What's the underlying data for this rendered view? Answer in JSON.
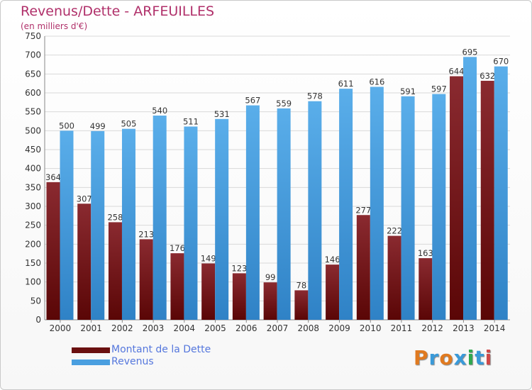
{
  "title": "Revenus/Dette - ARFEUILLES",
  "subtitle": "(en milliers d'€)",
  "colors": {
    "title": "#b0306a",
    "dette_top": "#8a2a30",
    "dette_bottom": "#5a0606",
    "revenus_top": "#5aaeea",
    "revenus_bottom": "#2f82c6",
    "legend_text": "#5577dd"
  },
  "legend": [
    {
      "label": "Montant de la Dette",
      "color": "#6a1010"
    },
    {
      "label": "Revenus",
      "color": "#4a9fe0"
    }
  ],
  "logo": {
    "text": "Proxiti",
    "colors": [
      "#e07a20",
      "#3a9ad9",
      "#e07a20",
      "#3a9ad9",
      "#2fa84f",
      "#3a9ad9",
      "#d04848"
    ]
  },
  "chart_data": {
    "type": "bar",
    "categories": [
      "2000",
      "2001",
      "2002",
      "2003",
      "2004",
      "2005",
      "2006",
      "2007",
      "2008",
      "2009",
      "2010",
      "2011",
      "2012",
      "2013",
      "2014"
    ],
    "series": [
      {
        "name": "Montant de la Dette",
        "values": [
          364,
          307,
          258,
          213,
          176,
          149,
          123,
          99,
          78,
          146,
          277,
          222,
          163,
          644,
          632
        ]
      },
      {
        "name": "Revenus",
        "values": [
          500,
          499,
          505,
          540,
          511,
          531,
          567,
          559,
          578,
          611,
          616,
          591,
          597,
          695,
          670
        ]
      }
    ],
    "title": "Revenus/Dette - ARFEUILLES",
    "subtitle": "(en milliers d'€)",
    "xlabel": "",
    "ylabel": "",
    "ylim": [
      0,
      750
    ],
    "yticks": [
      0,
      50,
      100,
      150,
      200,
      250,
      300,
      350,
      400,
      450,
      500,
      550,
      600,
      650,
      700,
      750
    ],
    "grid": true,
    "legend_position": "bottom-left"
  }
}
